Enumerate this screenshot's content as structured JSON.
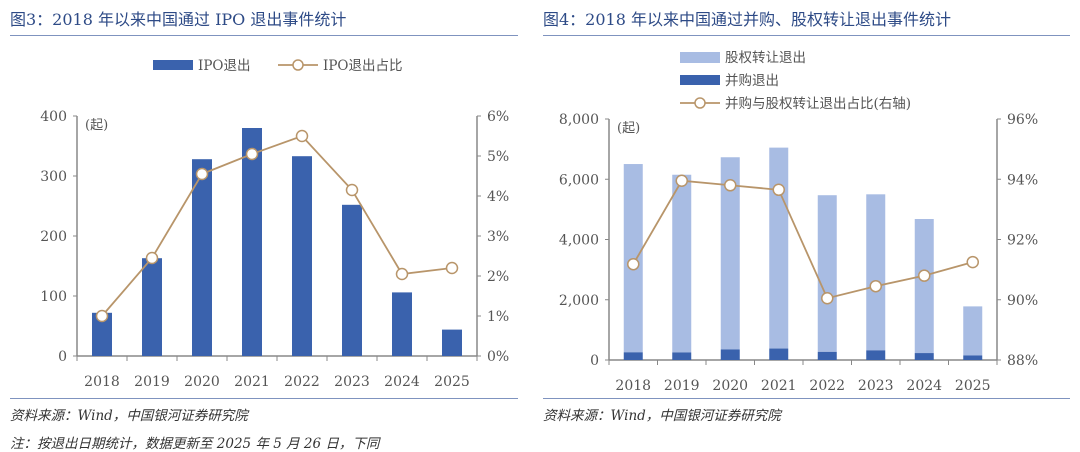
{
  "left": {
    "title": "图3：2018 年以来中国通过 IPO 退出事件统计",
    "source": "资料来源：Wind，中国银河证券研究院",
    "note": "注：按退出日期统计，数据更新至 2025 年 5 月 26 日，下同"
  },
  "right": {
    "title": "图4：2018 年以来中国通过并购、股权转让退出事件统计",
    "source": "资料来源：Wind，中国银河证券研究院"
  },
  "colors": {
    "bar_dark": "#3a62ad",
    "bar_light": "#a8bce3",
    "line": "#b8956a"
  },
  "chart_data": [
    {
      "type": "bar+line",
      "categories": [
        "2018",
        "2019",
        "2020",
        "2021",
        "2022",
        "2023",
        "2024",
        "2025"
      ],
      "unit_label": "(起)",
      "ylim": [
        0,
        400
      ],
      "yticks": [
        "0",
        "100",
        "200",
        "300",
        "400"
      ],
      "y2lim": [
        0,
        6
      ],
      "y2ticks": [
        "0%",
        "1%",
        "2%",
        "3%",
        "4%",
        "5%",
        "6%"
      ],
      "legend_position": "top",
      "series": [
        {
          "name": "IPO退出",
          "type": "bar",
          "axis": "left",
          "values": [
            72,
            163,
            328,
            380,
            333,
            252,
            106,
            44
          ]
        },
        {
          "name": "IPO退出占比",
          "type": "line",
          "axis": "right",
          "values": [
            1.0,
            2.45,
            4.55,
            5.05,
            5.5,
            4.15,
            2.05,
            2.2
          ]
        }
      ]
    },
    {
      "type": "stacked-bar+line",
      "categories": [
        "2018",
        "2019",
        "2020",
        "2021",
        "2022",
        "2023",
        "2024",
        "2025"
      ],
      "unit_label": "(起)",
      "ylim": [
        0,
        8000
      ],
      "yticks": [
        "0",
        "2,000",
        "4,000",
        "6,000",
        "8,000"
      ],
      "y2lim": [
        88,
        96
      ],
      "y2ticks": [
        "88%",
        "90%",
        "92%",
        "94%",
        "96%"
      ],
      "legend_position": "top",
      "series": [
        {
          "name": "股权转让退出",
          "type": "bar",
          "axis": "left",
          "values": [
            6250,
            5900,
            6380,
            6670,
            5200,
            5180,
            4450,
            1630
          ]
        },
        {
          "name": "并购退出",
          "type": "bar",
          "axis": "left",
          "values": [
            255,
            250,
            350,
            380,
            270,
            320,
            230,
            150
          ]
        },
        {
          "name": "并购与股权转让退出占比(右轴)",
          "type": "line",
          "axis": "right",
          "values": [
            91.18,
            93.95,
            93.8,
            93.65,
            90.05,
            90.45,
            90.8,
            91.25
          ]
        }
      ]
    }
  ]
}
